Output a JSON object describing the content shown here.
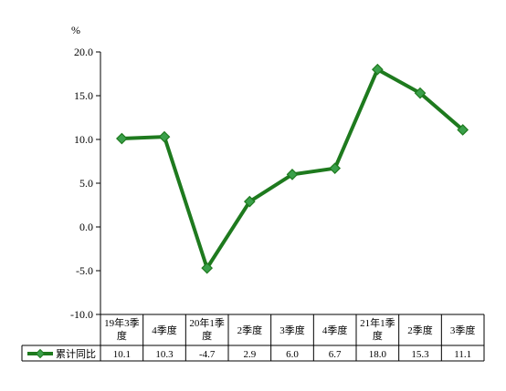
{
  "chart_data": {
    "type": "line",
    "unit": "%",
    "categories": [
      [
        "19年3季",
        "度"
      ],
      [
        "4季度"
      ],
      [
        "20年1季",
        "度"
      ],
      [
        "2季度"
      ],
      [
        "3季度"
      ],
      [
        "4季度"
      ],
      [
        "21年1季",
        "度"
      ],
      [
        "2季度"
      ],
      [
        "3季度"
      ]
    ],
    "series": [
      {
        "name": "累计同比",
        "values": [
          10.1,
          10.3,
          -4.7,
          2.9,
          6.0,
          6.7,
          18.0,
          15.3,
          11.1
        ],
        "color": "#1e7a1e",
        "marker_color": "#3aa04a"
      }
    ],
    "value_labels": [
      "10.1",
      "10.3",
      "-4.7",
      "2.9",
      "6.0",
      "6.7",
      "18.0",
      "15.3",
      "11.1"
    ],
    "ylim": [
      -10,
      20
    ],
    "yticks": [
      -10,
      -5,
      0,
      5,
      10,
      15,
      20
    ],
    "ytick_labels": [
      "-10.0",
      "-5.0",
      "0.0",
      "5.0",
      "10.0",
      "15.0",
      "20.0"
    ],
    "grid": false,
    "legend_placement": "bottom-left, in data table"
  }
}
